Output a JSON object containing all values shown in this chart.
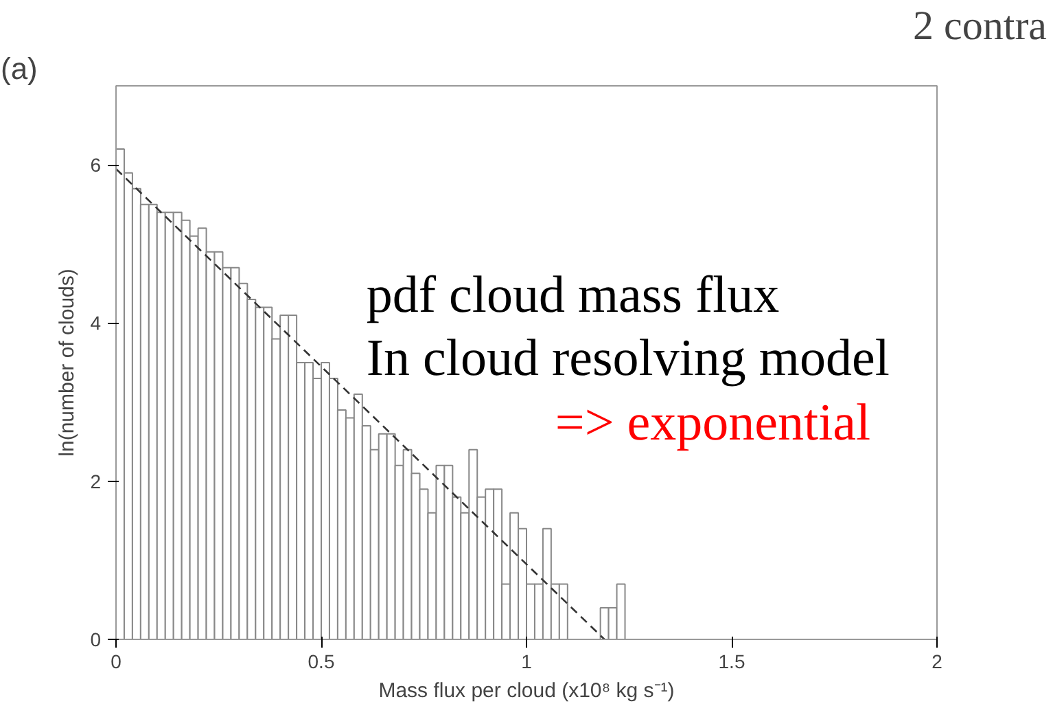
{
  "chart_data": {
    "type": "histogram",
    "xlabel": "Mass flux per cloud (x10⁸ kg s⁻¹)",
    "ylabel": "ln(number of clouds)",
    "bins": [
      0,
      0.02,
      0.04,
      0.06,
      0.08,
      0.1,
      0.12,
      0.14,
      0.16,
      0.18,
      0.2,
      0.22,
      0.24,
      0.26,
      0.28,
      0.3,
      0.32,
      0.34,
      0.36,
      0.38,
      0.4,
      0.42,
      0.44,
      0.46,
      0.48,
      0.5,
      0.52,
      0.54,
      0.56,
      0.58,
      0.6,
      0.62,
      0.64,
      0.66,
      0.68,
      0.7,
      0.72,
      0.74,
      0.76,
      0.78,
      0.8,
      0.82,
      0.84,
      0.86,
      0.88,
      0.9,
      0.92,
      0.94,
      0.96,
      0.98,
      1.0,
      1.02,
      1.04,
      1.06,
      1.08,
      1.1,
      1.12,
      1.14,
      1.16,
      1.18,
      1.2,
      1.22,
      1.24
    ],
    "values": [
      6.2,
      5.9,
      5.7,
      5.5,
      5.5,
      5.4,
      5.4,
      5.4,
      5.3,
      5.1,
      5.2,
      4.9,
      4.9,
      4.7,
      4.7,
      4.5,
      4.3,
      4.2,
      4.2,
      3.8,
      4.1,
      4.1,
      3.5,
      3.5,
      3.3,
      3.5,
      3.3,
      2.9,
      2.8,
      3.1,
      2.7,
      2.4,
      2.6,
      2.6,
      2.2,
      2.4,
      2.1,
      1.9,
      1.6,
      2.2,
      2.2,
      1.8,
      1.6,
      2.4,
      1.8,
      1.9,
      1.9,
      0.7,
      1.6,
      1.4,
      0.7,
      0.7,
      1.4,
      0.7,
      0.7,
      0,
      0,
      0,
      0,
      0.4,
      0.4,
      0.7
    ],
    "color": "#888888",
    "series": [
      {
        "type": "line",
        "x": [
          0,
          1.19
        ],
        "values": [
          5.95,
          0
        ],
        "color": "#333333",
        "line_style": "dashed"
      }
    ],
    "xlim": [
      0,
      2
    ],
    "ylim": [
      0,
      7
    ],
    "xticks": [
      0,
      0.5,
      1,
      1.5,
      2
    ],
    "yticks": [
      0,
      2,
      4,
      6
    ],
    "grid": false,
    "annotations": [
      "(a)",
      "2 contra",
      "pdf cloud mass flux",
      "In cloud resolving model",
      "=> exponential"
    ]
  }
}
